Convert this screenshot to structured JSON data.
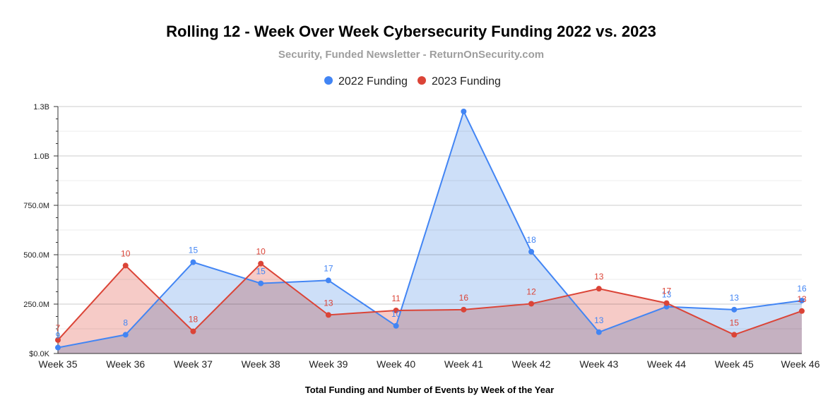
{
  "chart_data": {
    "type": "area",
    "title": "Rolling 12 - Week Over Week Cybersecurity Funding 2022 vs. 2023",
    "subtitle": "Security, Funded Newsletter - ReturnOnSecurity.com",
    "xlabel": "Total Funding and Number of Events by Week of the Year",
    "ylabel": "",
    "categories": [
      "Week 35",
      "Week 36",
      "Week 37",
      "Week 38",
      "Week 39",
      "Week 40",
      "Week 41",
      "Week 42",
      "Week 43",
      "Week 44",
      "Week 45",
      "Week 46"
    ],
    "ylim": [
      0,
      1250000000
    ],
    "yticks": [
      {
        "value": 0,
        "label": "$0.0K"
      },
      {
        "value": 250000000,
        "label": "250.0M"
      },
      {
        "value": 500000000,
        "label": "500.0M"
      },
      {
        "value": 750000000,
        "label": "750.0M"
      },
      {
        "value": 1000000000,
        "label": "1.0B"
      },
      {
        "value": 1250000000,
        "label": "1.3B"
      }
    ],
    "grid": true,
    "legend_position": "top",
    "series": [
      {
        "name": "2022 Funding",
        "color": "#4285f4",
        "fill": "#c4d9f7",
        "values": [
          30000000,
          95000000,
          462000000,
          355000000,
          370000000,
          140000000,
          1225000000,
          515000000,
          108000000,
          237000000,
          222000000,
          268000000
        ],
        "labels": [
          "9",
          "8",
          "15",
          "15",
          "17",
          "10",
          "",
          "18",
          "13",
          "13",
          "13",
          "16"
        ]
      },
      {
        "name": "2023 Funding",
        "color": "#db4437",
        "fill": "#f5c2bd",
        "values": [
          68000000,
          445000000,
          112000000,
          455000000,
          195000000,
          218000000,
          222000000,
          252000000,
          328000000,
          255000000,
          95000000,
          215000000
        ],
        "labels": [
          "7",
          "10",
          "18",
          "10",
          "13",
          "11",
          "16",
          "12",
          "13",
          "17",
          "15",
          "13"
        ]
      }
    ]
  }
}
